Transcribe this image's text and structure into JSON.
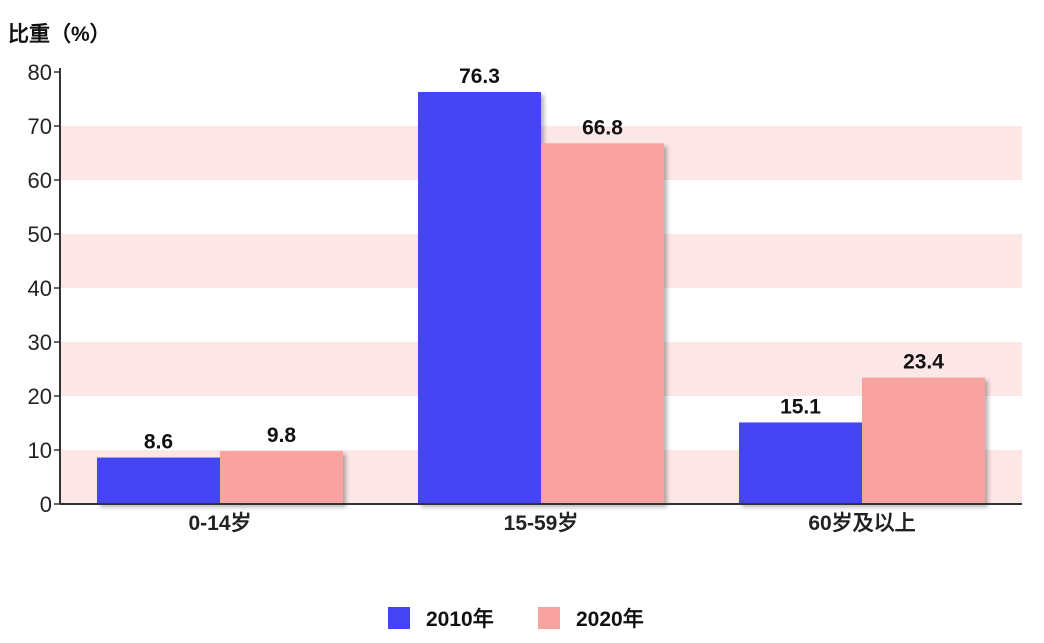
{
  "chart_data": {
    "type": "bar",
    "ylabel": "比重（%）",
    "ylim": [
      0,
      80
    ],
    "yticks": [
      "0",
      "10",
      "20",
      "30",
      "40",
      "50",
      "60",
      "70",
      "80"
    ],
    "categories": [
      "0-14岁",
      "15-59岁",
      "60岁及以上"
    ],
    "series": [
      {
        "name": "2010年",
        "values": [
          8.6,
          76.3,
          15.1
        ],
        "labels": [
          "8.6",
          "76.3",
          "15.1"
        ],
        "color": "#4444f5"
      },
      {
        "name": "2020年",
        "values": [
          9.8,
          66.8,
          23.4
        ],
        "labels": [
          "9.8",
          "66.8",
          "23.4"
        ],
        "color": "#f9a3a1"
      }
    ],
    "band_color": "#fde6e6",
    "legend_position": "bottom"
  }
}
